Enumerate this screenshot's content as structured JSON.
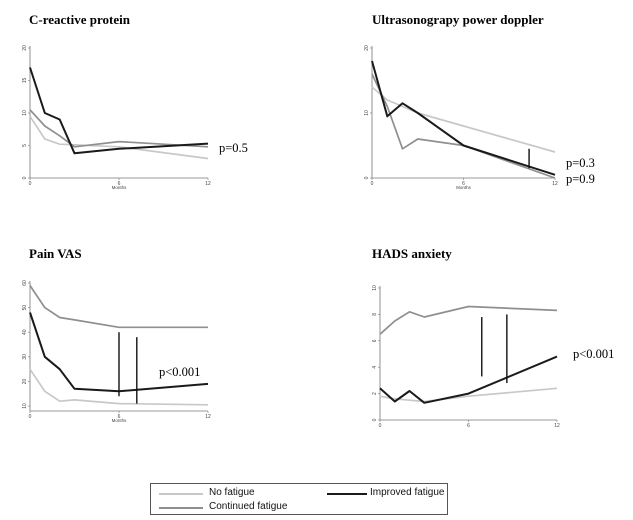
{
  "chart_data": [
    {
      "type": "line",
      "title": "C-reactive protein",
      "xlabel": "Months",
      "x_ticks": [
        "0",
        "6",
        "12"
      ],
      "y_ticks": [
        "0",
        "5",
        "10",
        "15",
        "20"
      ],
      "xlim": [
        0,
        12
      ],
      "ylim": [
        0,
        20
      ],
      "annotation": "p=0.5",
      "series": [
        {
          "name": "No fatigue",
          "color": "#c8c8c8",
          "points": [
            [
              0,
              9.5
            ],
            [
              1,
              6
            ],
            [
              2,
              5.2
            ],
            [
              3,
              5.1
            ],
            [
              6,
              4.8
            ],
            [
              12,
              3
            ]
          ]
        },
        {
          "name": "Continued fatigue",
          "color": "#8f8f8f",
          "points": [
            [
              0,
              10.5
            ],
            [
              1,
              8
            ],
            [
              2,
              6.5
            ],
            [
              3,
              4.8
            ],
            [
              6,
              5.6
            ],
            [
              12,
              4.8
            ]
          ]
        },
        {
          "name": "Improved fatigue",
          "color": "#1a1a1a",
          "points": [
            [
              0,
              17
            ],
            [
              1,
              10
            ],
            [
              2,
              9
            ],
            [
              3,
              3.8
            ],
            [
              6,
              4.5
            ],
            [
              12,
              5.3
            ]
          ]
        }
      ]
    },
    {
      "type": "line",
      "title": "Ultrasonograpy power doppler",
      "xlabel": "Months",
      "x_ticks": [
        "0",
        "6",
        "12"
      ],
      "y_ticks": [
        "0",
        "10",
        "20"
      ],
      "xlim": [
        0,
        12
      ],
      "ylim": [
        0,
        20
      ],
      "annotation": "p=0.3",
      "annotation2": "p=0.9",
      "bracket": {
        "x": 10.3,
        "y": [
          1.5,
          4.5
        ]
      },
      "series": [
        {
          "name": "No fatigue",
          "color": "#c8c8c8",
          "points": [
            [
              0,
              14
            ],
            [
              1,
              12
            ],
            [
              2,
              11
            ],
            [
              3,
              10
            ],
            [
              6,
              8
            ],
            [
              12,
              4
            ]
          ]
        },
        {
          "name": "Continued fatigue",
          "color": "#8f8f8f",
          "points": [
            [
              0,
              16
            ],
            [
              1,
              11
            ],
            [
              2,
              4.5
            ],
            [
              3,
              6
            ],
            [
              6,
              5
            ],
            [
              12,
              0
            ]
          ]
        },
        {
          "name": "Improved fatigue",
          "color": "#1a1a1a",
          "points": [
            [
              0,
              18
            ],
            [
              1,
              9.5
            ],
            [
              2,
              11.5
            ],
            [
              3,
              10
            ],
            [
              6,
              5
            ],
            [
              12,
              0.5
            ]
          ]
        }
      ]
    },
    {
      "type": "line",
      "title": "Pain VAS",
      "xlabel": "Months",
      "x_ticks": [
        "0",
        "6",
        "12"
      ],
      "y_ticks": [
        "10",
        "20",
        "30",
        "40",
        "50",
        "60"
      ],
      "xlim": [
        0,
        12
      ],
      "ylim": [
        8,
        60
      ],
      "annotation": "p<0.001",
      "brackets": [
        {
          "x": 6,
          "y": [
            14,
            40
          ]
        },
        {
          "x": 7.2,
          "y": [
            11,
            38
          ]
        }
      ],
      "series": [
        {
          "name": "No fatigue",
          "color": "#c8c8c8",
          "points": [
            [
              0,
              25
            ],
            [
              1,
              16
            ],
            [
              2,
              12
            ],
            [
              3,
              12.5
            ],
            [
              6,
              11
            ],
            [
              12,
              10.5
            ]
          ]
        },
        {
          "name": "Continued fatigue",
          "color": "#8f8f8f",
          "points": [
            [
              0,
              59
            ],
            [
              1,
              50
            ],
            [
              2,
              46
            ],
            [
              3,
              45
            ],
            [
              6,
              42
            ],
            [
              12,
              42
            ]
          ]
        },
        {
          "name": "Improved fatigue",
          "color": "#1a1a1a",
          "points": [
            [
              0,
              48
            ],
            [
              1,
              30
            ],
            [
              2,
              25
            ],
            [
              3,
              17
            ],
            [
              6,
              16
            ],
            [
              12,
              19
            ]
          ]
        }
      ]
    },
    {
      "type": "line",
      "title": "HADS anxiety",
      "xlabel": "",
      "x_ticks": [
        "0",
        "6",
        "12"
      ],
      "y_ticks": [
        "0",
        "2",
        "4",
        "6",
        "8",
        "10"
      ],
      "xlim": [
        0,
        12
      ],
      "ylim": [
        0,
        10
      ],
      "annotation": "p<0.001",
      "brackets": [
        {
          "x": 6.9,
          "y": [
            3.3,
            7.8
          ]
        },
        {
          "x": 8.6,
          "y": [
            2.8,
            8
          ]
        }
      ],
      "series": [
        {
          "name": "No fatigue",
          "color": "#c8c8c8",
          "points": [
            [
              0,
              1.8
            ],
            [
              1,
              1.6
            ],
            [
              2,
              1.5
            ],
            [
              3,
              1.4
            ],
            [
              6,
              1.8
            ],
            [
              12,
              2.4
            ]
          ]
        },
        {
          "name": "Continued fatigue",
          "color": "#8f8f8f",
          "points": [
            [
              0,
              6.5
            ],
            [
              1,
              7.5
            ],
            [
              2,
              8.2
            ],
            [
              3,
              7.8
            ],
            [
              6,
              8.6
            ],
            [
              12,
              8.3
            ]
          ]
        },
        {
          "name": "Improved fatigue",
          "color": "#1a1a1a",
          "points": [
            [
              0,
              2.4
            ],
            [
              1,
              1.4
            ],
            [
              2,
              2.2
            ],
            [
              3,
              1.3
            ],
            [
              6,
              2
            ],
            [
              12,
              4.8
            ]
          ]
        }
      ]
    }
  ],
  "legend": {
    "items": [
      {
        "label": "No fatigue",
        "color": "#c8c8c8"
      },
      {
        "label": "Improved fatigue",
        "color": "#1a1a1a"
      },
      {
        "label": "Continued fatigue",
        "color": "#8f8f8f"
      }
    ]
  }
}
